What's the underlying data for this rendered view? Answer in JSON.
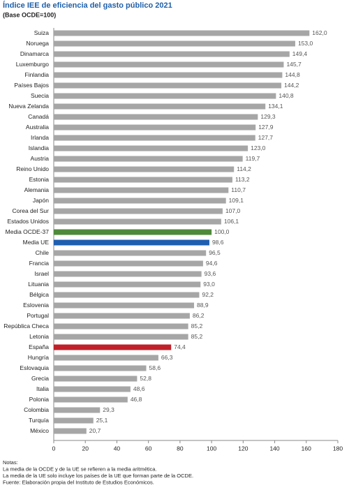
{
  "chart_data": {
    "type": "hbar",
    "title": "Índice IEE de eficiencia del gasto público 2021",
    "subtitle": "(Base OCDE=100)",
    "categories": [
      "Suiza",
      "Noruega",
      "Dinamarca",
      "Luxemburgo",
      "Finlandia",
      "Países Bajos",
      "Suecia",
      "Nueva Zelanda",
      "Canadá",
      "Australia",
      "Irlanda",
      "Islandia",
      "Austria",
      "Reino Unido",
      "Estonia",
      "Alemania",
      "Japón",
      "Corea del Sur",
      "Estados Unidos",
      "Media OCDE-37",
      "Media UE",
      "Chile",
      "Francia",
      "Israel",
      "Lituania",
      "Bélgica",
      "Eslovenia",
      "Portugal",
      "República Checa",
      "Letonia",
      "España",
      "Hungría",
      "Eslovaquia",
      "Grecia",
      "Italia",
      "Polonia",
      "Colombia",
      "Turquía",
      "México"
    ],
    "values": [
      162.0,
      153.0,
      149.4,
      145.7,
      144.8,
      144.2,
      140.8,
      134.1,
      129.3,
      127.9,
      127.7,
      123.0,
      119.7,
      114.2,
      113.2,
      110.7,
      109.1,
      107.0,
      106.1,
      100.0,
      98.6,
      96.5,
      94.6,
      93.6,
      93.0,
      92.2,
      88.9,
      86.2,
      85.2,
      85.2,
      74.4,
      66.3,
      58.6,
      52.8,
      48.6,
      46.8,
      29.3,
      25.1,
      20.7
    ],
    "value_labels": [
      "162,0",
      "153,0",
      "149,4",
      "145,7",
      "144,8",
      "144,2",
      "140,8",
      "134,1",
      "129,3",
      "127,9",
      "127,7",
      "123,0",
      "119,7",
      "114,2",
      "113,2",
      "110,7",
      "109,1",
      "107,0",
      "106,1",
      "100,0",
      "98,6",
      "96,5",
      "94,6",
      "93,6",
      "93,0",
      "92,2",
      "88,9",
      "86,2",
      "85,2",
      "85,2",
      "74,4",
      "66,3",
      "58,6",
      "52,8",
      "48,6",
      "46,8",
      "29,3",
      "25,1",
      "20,7"
    ],
    "colors": [
      "#a6a6a6",
      "#a6a6a6",
      "#a6a6a6",
      "#a6a6a6",
      "#a6a6a6",
      "#a6a6a6",
      "#a6a6a6",
      "#a6a6a6",
      "#a6a6a6",
      "#a6a6a6",
      "#a6a6a6",
      "#a6a6a6",
      "#a6a6a6",
      "#a6a6a6",
      "#a6a6a6",
      "#a6a6a6",
      "#a6a6a6",
      "#a6a6a6",
      "#a6a6a6",
      "#4e8a3a",
      "#1f5fb0",
      "#a6a6a6",
      "#a6a6a6",
      "#a6a6a6",
      "#a6a6a6",
      "#a6a6a6",
      "#a6a6a6",
      "#a6a6a6",
      "#a6a6a6",
      "#a6a6a6",
      "#c0202a",
      "#a6a6a6",
      "#a6a6a6",
      "#a6a6a6",
      "#a6a6a6",
      "#a6a6a6",
      "#a6a6a6",
      "#a6a6a6",
      "#a6a6a6"
    ],
    "xlim": [
      0,
      180
    ],
    "xticks": [
      0,
      20,
      40,
      60,
      80,
      100,
      120,
      140,
      160,
      180
    ],
    "notes": [
      "Notas:",
      "La media de la OCDE y de la UE se refieren a la media aritmética.",
      "La media de la UE solo incluye los países de la UE que forman parte de la OCDE.",
      "Fuente: Elaboración propia del Instituto de Estudios Económicos."
    ]
  }
}
